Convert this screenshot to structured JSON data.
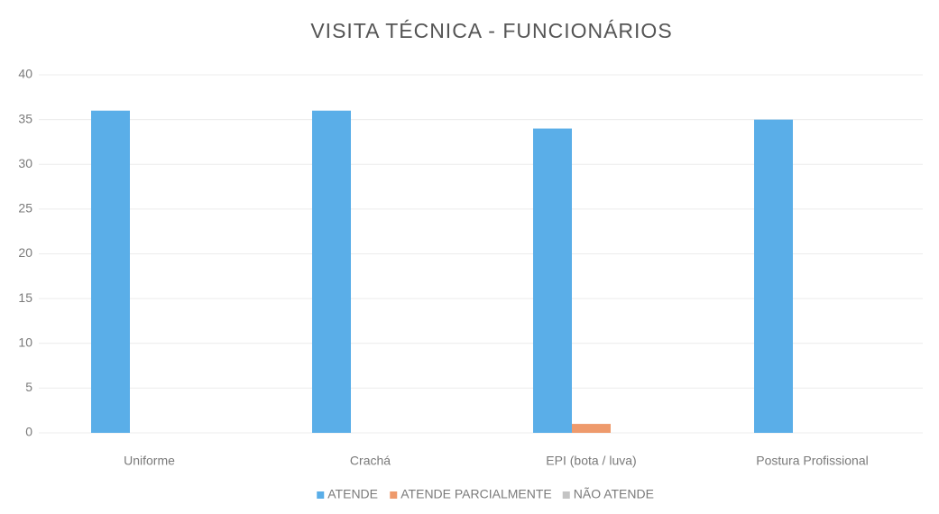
{
  "chart_data": {
    "type": "bar",
    "title": "VISITA TÉCNICA - FUNCIONÁRIOS",
    "categories": [
      "Uniforme",
      "Crachá",
      "EPI (bota / luva)",
      "Postura Profissional"
    ],
    "series": [
      {
        "name": "ATENDE",
        "color": "#5aaee8",
        "values": [
          36,
          36,
          34,
          35
        ]
      },
      {
        "name": "ATENDE PARCIALMENTE",
        "color": "#ee9a6c",
        "values": [
          0,
          0,
          1,
          0
        ]
      },
      {
        "name": "NÃO ATENDE",
        "color": "#c4c4c4",
        "values": [
          0,
          0,
          0,
          0
        ]
      }
    ],
    "ylim": [
      0,
      40
    ],
    "yticks": [
      0,
      5,
      10,
      15,
      20,
      25,
      30,
      35,
      40
    ],
    "grid": true,
    "legend": "bottom"
  }
}
